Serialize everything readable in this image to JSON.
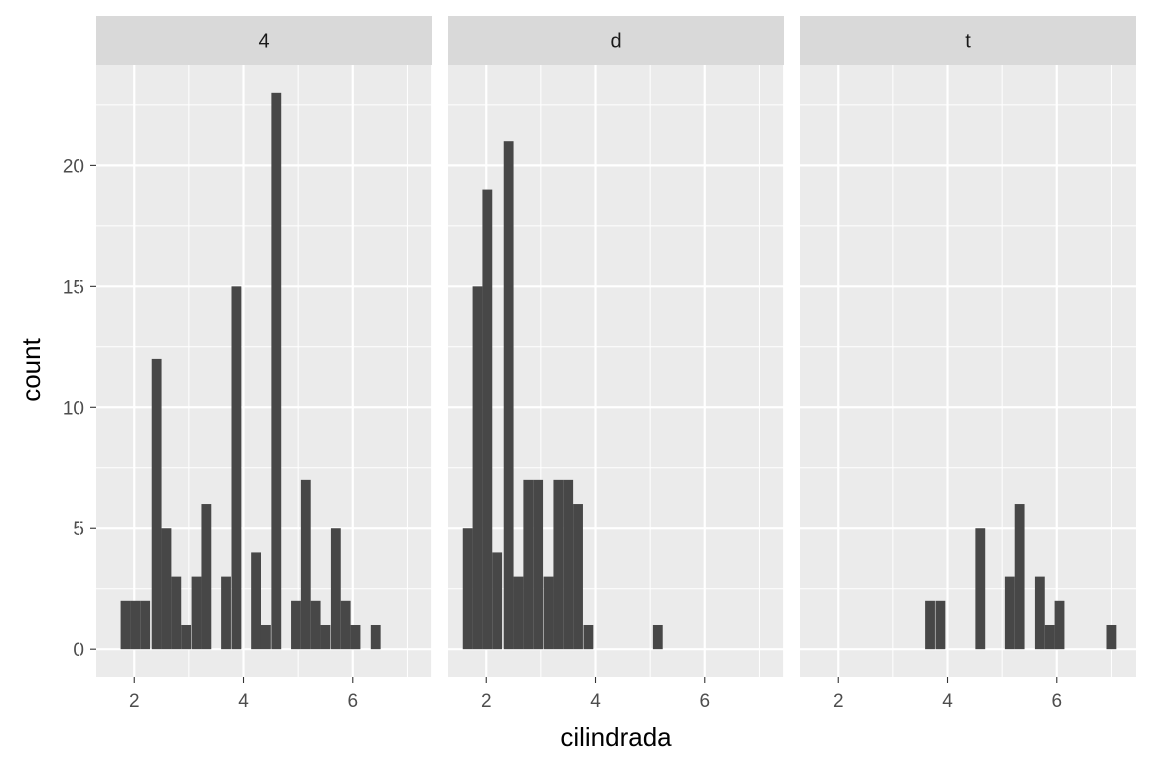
{
  "chart_data": {
    "type": "bar",
    "subtype": "faceted-histogram",
    "xlabel": "cilindrada",
    "ylabel": "count",
    "xlim": [
      1.3,
      7.45
    ],
    "ylim": [
      -1.15,
      24.15
    ],
    "x_ticks": [
      2,
      4,
      6
    ],
    "y_ticks": [
      0,
      5,
      10,
      15,
      20
    ],
    "bin_width": 0.18,
    "grid": true,
    "colors": {
      "bar": "#474747",
      "panel": "#ebebeb",
      "grid": "#ffffff",
      "strip": "#d9d9d9"
    },
    "facets": [
      {
        "label": "4",
        "bins": [
          {
            "x": 1.84,
            "count": 2
          },
          {
            "x": 2.02,
            "count": 2
          },
          {
            "x": 2.2,
            "count": 2
          },
          {
            "x": 2.41,
            "count": 12
          },
          {
            "x": 2.59,
            "count": 5
          },
          {
            "x": 2.77,
            "count": 3
          },
          {
            "x": 2.95,
            "count": 1
          },
          {
            "x": 3.14,
            "count": 3
          },
          {
            "x": 3.32,
            "count": 6
          },
          {
            "x": 3.68,
            "count": 3
          },
          {
            "x": 3.87,
            "count": 15
          },
          {
            "x": 4.23,
            "count": 4
          },
          {
            "x": 4.41,
            "count": 1
          },
          {
            "x": 4.6,
            "count": 23
          },
          {
            "x": 4.96,
            "count": 2
          },
          {
            "x": 5.14,
            "count": 7
          },
          {
            "x": 5.32,
            "count": 2
          },
          {
            "x": 5.5,
            "count": 1
          },
          {
            "x": 5.69,
            "count": 5
          },
          {
            "x": 5.87,
            "count": 2
          },
          {
            "x": 6.05,
            "count": 1
          },
          {
            "x": 6.42,
            "count": 1
          }
        ]
      },
      {
        "label": "d",
        "bins": [
          {
            "x": 1.66,
            "count": 5
          },
          {
            "x": 1.84,
            "count": 15
          },
          {
            "x": 2.02,
            "count": 19
          },
          {
            "x": 2.2,
            "count": 4
          },
          {
            "x": 2.41,
            "count": 21
          },
          {
            "x": 2.59,
            "count": 3
          },
          {
            "x": 2.77,
            "count": 7
          },
          {
            "x": 2.95,
            "count": 7
          },
          {
            "x": 3.14,
            "count": 3
          },
          {
            "x": 3.32,
            "count": 7
          },
          {
            "x": 3.5,
            "count": 7
          },
          {
            "x": 3.68,
            "count": 6
          },
          {
            "x": 3.87,
            "count": 1
          },
          {
            "x": 5.14,
            "count": 1
          }
        ]
      },
      {
        "label": "t",
        "bins": [
          {
            "x": 3.68,
            "count": 2
          },
          {
            "x": 3.87,
            "count": 2
          },
          {
            "x": 4.6,
            "count": 5
          },
          {
            "x": 5.14,
            "count": 3
          },
          {
            "x": 5.32,
            "count": 6
          },
          {
            "x": 5.69,
            "count": 3
          },
          {
            "x": 5.87,
            "count": 1
          },
          {
            "x": 6.05,
            "count": 2
          },
          {
            "x": 7.0,
            "count": 1
          }
        ]
      }
    ]
  }
}
